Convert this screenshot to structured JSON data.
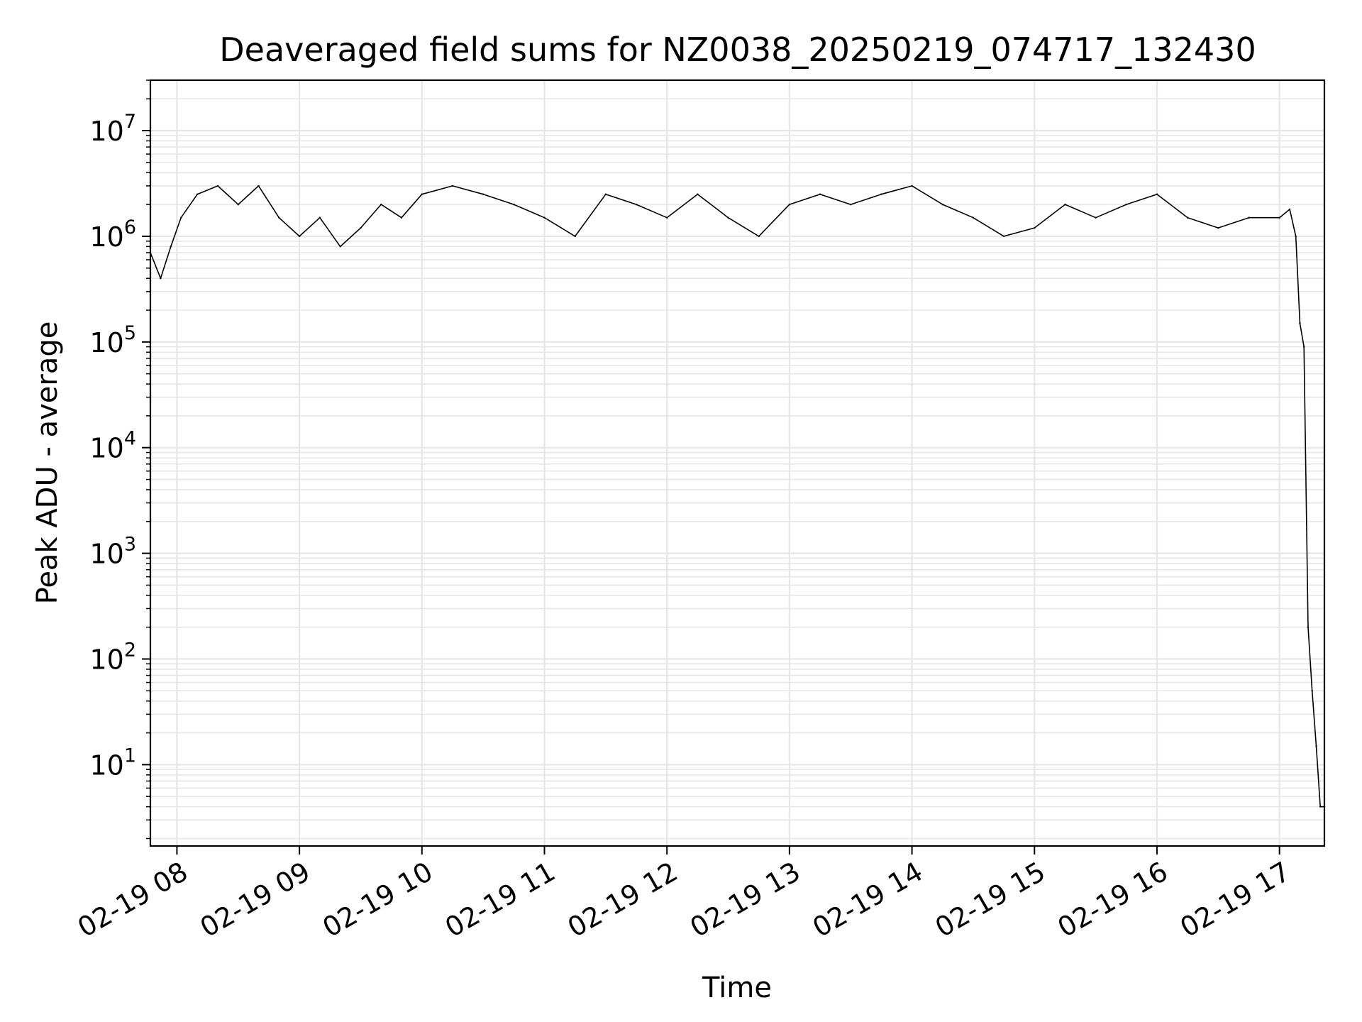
{
  "chart_data": {
    "type": "line",
    "title": "Deaveraged field sums for NZ0038_20250219_074717_132430",
    "xlabel": "Time",
    "ylabel": "Peak ADU - average",
    "yscale": "log",
    "grid": true,
    "line_color": "#000000",
    "grid_color": "#e6e6e6",
    "xlim": [
      "2025-02-19 07:47",
      "2025-02-19 17:22"
    ],
    "ylim": [
      1.7,
      30000000
    ],
    "x_tick_labels": [
      "02-19 08",
      "02-19 09",
      "02-19 10",
      "02-19 11",
      "02-19 12",
      "02-19 13",
      "02-19 14",
      "02-19 15",
      "02-19 16",
      "02-19 17"
    ],
    "y_tick_labels": [
      {
        "base": "10",
        "exp": "1"
      },
      {
        "base": "10",
        "exp": "2"
      },
      {
        "base": "10",
        "exp": "3"
      },
      {
        "base": "10",
        "exp": "4"
      },
      {
        "base": "10",
        "exp": "5"
      },
      {
        "base": "10",
        "exp": "6"
      },
      {
        "base": "10",
        "exp": "7"
      }
    ],
    "series": [
      {
        "x": [
          "2025-02-19 07:47",
          "2025-02-19 07:52",
          "2025-02-19 07:57",
          "2025-02-19 08:02",
          "2025-02-19 08:10",
          "2025-02-19 08:20",
          "2025-02-19 08:30",
          "2025-02-19 08:40",
          "2025-02-19 08:50",
          "2025-02-19 09:00",
          "2025-02-19 09:10",
          "2025-02-19 09:20",
          "2025-02-19 09:30",
          "2025-02-19 09:40",
          "2025-02-19 09:50",
          "2025-02-19 10:00",
          "2025-02-19 10:15",
          "2025-02-19 10:30",
          "2025-02-19 10:45",
          "2025-02-19 11:00",
          "2025-02-19 11:15",
          "2025-02-19 11:30",
          "2025-02-19 11:45",
          "2025-02-19 12:00",
          "2025-02-19 12:15",
          "2025-02-19 12:30",
          "2025-02-19 12:45",
          "2025-02-19 13:00",
          "2025-02-19 13:15",
          "2025-02-19 13:30",
          "2025-02-19 13:45",
          "2025-02-19 14:00",
          "2025-02-19 14:15",
          "2025-02-19 14:30",
          "2025-02-19 14:45",
          "2025-02-19 15:00",
          "2025-02-19 15:15",
          "2025-02-19 15:30",
          "2025-02-19 15:45",
          "2025-02-19 16:00",
          "2025-02-19 16:15",
          "2025-02-19 16:30",
          "2025-02-19 16:45",
          "2025-02-19 17:00",
          "2025-02-19 17:05",
          "2025-02-19 17:08",
          "2025-02-19 17:10",
          "2025-02-19 17:12",
          "2025-02-19 17:14",
          "2025-02-19 17:16",
          "2025-02-19 17:18",
          "2025-02-19 17:20",
          "2025-02-19 17:22"
        ],
        "y": [
          700000,
          400000,
          800000,
          1500000,
          2500000,
          3000000,
          2000000,
          3000000,
          1500000,
          1000000,
          1500000,
          800000,
          1200000,
          2000000,
          1500000,
          2500000,
          3000000,
          2500000,
          2000000,
          1500000,
          1000000,
          2500000,
          2000000,
          1500000,
          2500000,
          1500000,
          1000000,
          2000000,
          2500000,
          2000000,
          2500000,
          3000000,
          2000000,
          1500000,
          1000000,
          1200000,
          2000000,
          1500000,
          2000000,
          2500000,
          1500000,
          1200000,
          1500000,
          1500000,
          1800000,
          1000000,
          150000,
          90000,
          200,
          50,
          15,
          4,
          4
        ]
      }
    ]
  }
}
